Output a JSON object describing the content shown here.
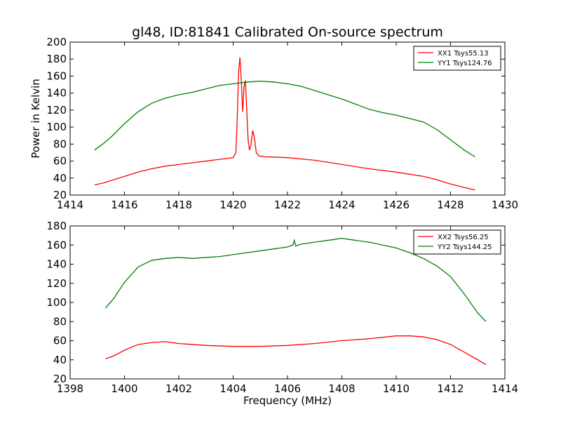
{
  "chart_data": [
    {
      "type": "line",
      "title": "gl48, ID:81841 Calibrated On-source spectrum",
      "xlabel": "",
      "ylabel": "Power in Kelvin",
      "xlim": [
        1414,
        1430
      ],
      "ylim": [
        20,
        200
      ],
      "xticks": [
        1414,
        1416,
        1418,
        1420,
        1422,
        1424,
        1426,
        1428,
        1430
      ],
      "yticks": [
        20,
        40,
        60,
        80,
        100,
        120,
        140,
        160,
        180,
        200
      ],
      "legend_position": "top-right",
      "series": [
        {
          "name": "XX1 Tsys55.13",
          "color": "#ff0000",
          "points": [
            [
              1414.9,
              32
            ],
            [
              1415.2,
              34
            ],
            [
              1415.5,
              37
            ],
            [
              1416,
              42
            ],
            [
              1416.5,
              47
            ],
            [
              1417,
              51
            ],
            [
              1417.5,
              54
            ],
            [
              1418,
              56
            ],
            [
              1418.5,
              58
            ],
            [
              1419,
              60
            ],
            [
              1419.5,
              62
            ],
            [
              1420,
              64
            ],
            [
              1420.1,
              70
            ],
            [
              1420.15,
              110
            ],
            [
              1420.2,
              165
            ],
            [
              1420.25,
              182
            ],
            [
              1420.3,
              155
            ],
            [
              1420.35,
              118
            ],
            [
              1420.4,
              148
            ],
            [
              1420.45,
              155
            ],
            [
              1420.5,
              120
            ],
            [
              1420.55,
              85
            ],
            [
              1420.6,
              73
            ],
            [
              1420.65,
              78
            ],
            [
              1420.72,
              96
            ],
            [
              1420.78,
              88
            ],
            [
              1420.85,
              70
            ],
            [
              1420.95,
              66
            ],
            [
              1421.2,
              65
            ],
            [
              1422,
              64
            ],
            [
              1423,
              61
            ],
            [
              1424,
              56
            ],
            [
              1425,
              51
            ],
            [
              1426,
              47
            ],
            [
              1427,
              42
            ],
            [
              1427.5,
              38
            ],
            [
              1428,
              33
            ],
            [
              1428.5,
              29
            ],
            [
              1428.9,
              26
            ]
          ]
        },
        {
          "name": "YY1 Tsys124.76",
          "color": "#008000",
          "points": [
            [
              1414.9,
              73
            ],
            [
              1415.2,
              80
            ],
            [
              1415.5,
              88
            ],
            [
              1416,
              104
            ],
            [
              1416.5,
              118
            ],
            [
              1417,
              128
            ],
            [
              1417.5,
              134
            ],
            [
              1418,
              138
            ],
            [
              1418.5,
              141
            ],
            [
              1419,
              145
            ],
            [
              1419.5,
              149
            ],
            [
              1420,
              151
            ],
            [
              1420.5,
              153
            ],
            [
              1421,
              154
            ],
            [
              1421.5,
              153
            ],
            [
              1422,
              151
            ],
            [
              1422.5,
              148
            ],
            [
              1423,
              143
            ],
            [
              1423.5,
              138
            ],
            [
              1424,
              133
            ],
            [
              1424.5,
              127
            ],
            [
              1425,
              121
            ],
            [
              1425.5,
              117
            ],
            [
              1426,
              114
            ],
            [
              1426.5,
              110
            ],
            [
              1427,
              106
            ],
            [
              1427.5,
              97
            ],
            [
              1428,
              85
            ],
            [
              1428.5,
              73
            ],
            [
              1428.9,
              65
            ]
          ]
        }
      ]
    },
    {
      "type": "line",
      "title": "",
      "xlabel": "Frequency (MHz)",
      "ylabel": "",
      "xlim": [
        1398,
        1414
      ],
      "ylim": [
        20,
        180
      ],
      "xticks": [
        1398,
        1400,
        1402,
        1404,
        1406,
        1408,
        1410,
        1412,
        1414
      ],
      "yticks": [
        20,
        40,
        60,
        80,
        100,
        120,
        140,
        160,
        180
      ],
      "legend_position": "top-right",
      "series": [
        {
          "name": "XX2 Tsys56.25",
          "color": "#ff0000",
          "points": [
            [
              1399.3,
              41
            ],
            [
              1399.6,
              44
            ],
            [
              1400,
              50
            ],
            [
              1400.5,
              56
            ],
            [
              1401,
              58
            ],
            [
              1401.5,
              59
            ],
            [
              1402,
              57
            ],
            [
              1402.5,
              56
            ],
            [
              1403,
              55
            ],
            [
              1404,
              54
            ],
            [
              1405,
              54
            ],
            [
              1406,
              55
            ],
            [
              1407,
              57
            ],
            [
              1408,
              60
            ],
            [
              1409,
              62
            ],
            [
              1410,
              65
            ],
            [
              1410.5,
              65
            ],
            [
              1411,
              64
            ],
            [
              1411.5,
              61
            ],
            [
              1412,
              56
            ],
            [
              1412.5,
              48
            ],
            [
              1413,
              40
            ],
            [
              1413.3,
              35
            ]
          ]
        },
        {
          "name": "YY2 Tsys144.25",
          "color": "#008000",
          "points": [
            [
              1399.3,
              94
            ],
            [
              1399.6,
              104
            ],
            [
              1400,
              121
            ],
            [
              1400.5,
              137
            ],
            [
              1401,
              144
            ],
            [
              1401.5,
              146
            ],
            [
              1402,
              147
            ],
            [
              1402.5,
              146
            ],
            [
              1403,
              147
            ],
            [
              1403.5,
              148
            ],
            [
              1404,
              150
            ],
            [
              1404.5,
              152
            ],
            [
              1405,
              154
            ],
            [
              1405.5,
              156
            ],
            [
              1406,
              158
            ],
            [
              1406.2,
              160
            ],
            [
              1406.25,
              165
            ],
            [
              1406.3,
              159
            ],
            [
              1406.5,
              161
            ],
            [
              1407,
              163
            ],
            [
              1407.5,
              165
            ],
            [
              1408,
              167
            ],
            [
              1408.5,
              165
            ],
            [
              1409,
              163
            ],
            [
              1409.5,
              160
            ],
            [
              1410,
              157
            ],
            [
              1410.5,
              152
            ],
            [
              1411,
              146
            ],
            [
              1411.5,
              138
            ],
            [
              1412,
              127
            ],
            [
              1412.5,
              109
            ],
            [
              1413,
              89
            ],
            [
              1413.3,
              80
            ]
          ]
        }
      ]
    }
  ]
}
